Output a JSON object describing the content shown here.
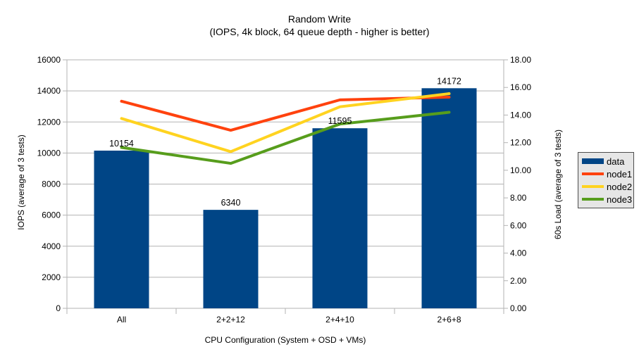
{
  "title": {
    "line1": "Random Write",
    "line2": "(IOPS, 4k block, 64 queue depth - higher is better)"
  },
  "chart_data": {
    "type": "bar",
    "subtype": "combo bar + line, dual y-axis",
    "categories": [
      "All",
      "2+2+12",
      "2+4+10",
      "2+6+8"
    ],
    "series": [
      {
        "name": "data",
        "kind": "bar",
        "axis": "left",
        "color": "#004586",
        "values": [
          10154,
          6340,
          11595,
          14172
        ],
        "data_labels": [
          "10154",
          "6340",
          "11595",
          "14172"
        ]
      },
      {
        "name": "node1",
        "kind": "line",
        "axis": "right",
        "color": "#ff420e",
        "values": [
          15.0,
          12.9,
          15.1,
          15.3
        ]
      },
      {
        "name": "node2",
        "kind": "line",
        "axis": "right",
        "color": "#ffd320",
        "values": [
          13.75,
          11.35,
          14.6,
          15.55
        ]
      },
      {
        "name": "node3",
        "kind": "line",
        "axis": "right",
        "color": "#579d1c",
        "values": [
          11.65,
          10.5,
          13.35,
          14.2
        ]
      }
    ],
    "xlabel": "CPU Configuration (System + OSD + VMs)",
    "ylabel_left": "IOPS (average of 3 tests)",
    "ylabel_right": "60s Load (average of 3 tests)",
    "ylim_left": [
      0,
      16000
    ],
    "ytick_step_left": 2000,
    "ylim_right": [
      0,
      18
    ],
    "ytick_step_right": 2,
    "grid": "horizontal gridlines at left-axis steps",
    "legend_position": "right"
  },
  "legend": {
    "entries": [
      "data",
      "node1",
      "node2",
      "node3"
    ]
  },
  "colors": {
    "bar_blue": "#004586",
    "line_red": "#ff420e",
    "line_yellow": "#ffd320",
    "line_green": "#579d1c",
    "gridline": "#b3b3b3",
    "legend_bg": "#e6e6e6",
    "legend_border": "#4d4d4d",
    "text": "#000000",
    "background": "#ffffff"
  }
}
